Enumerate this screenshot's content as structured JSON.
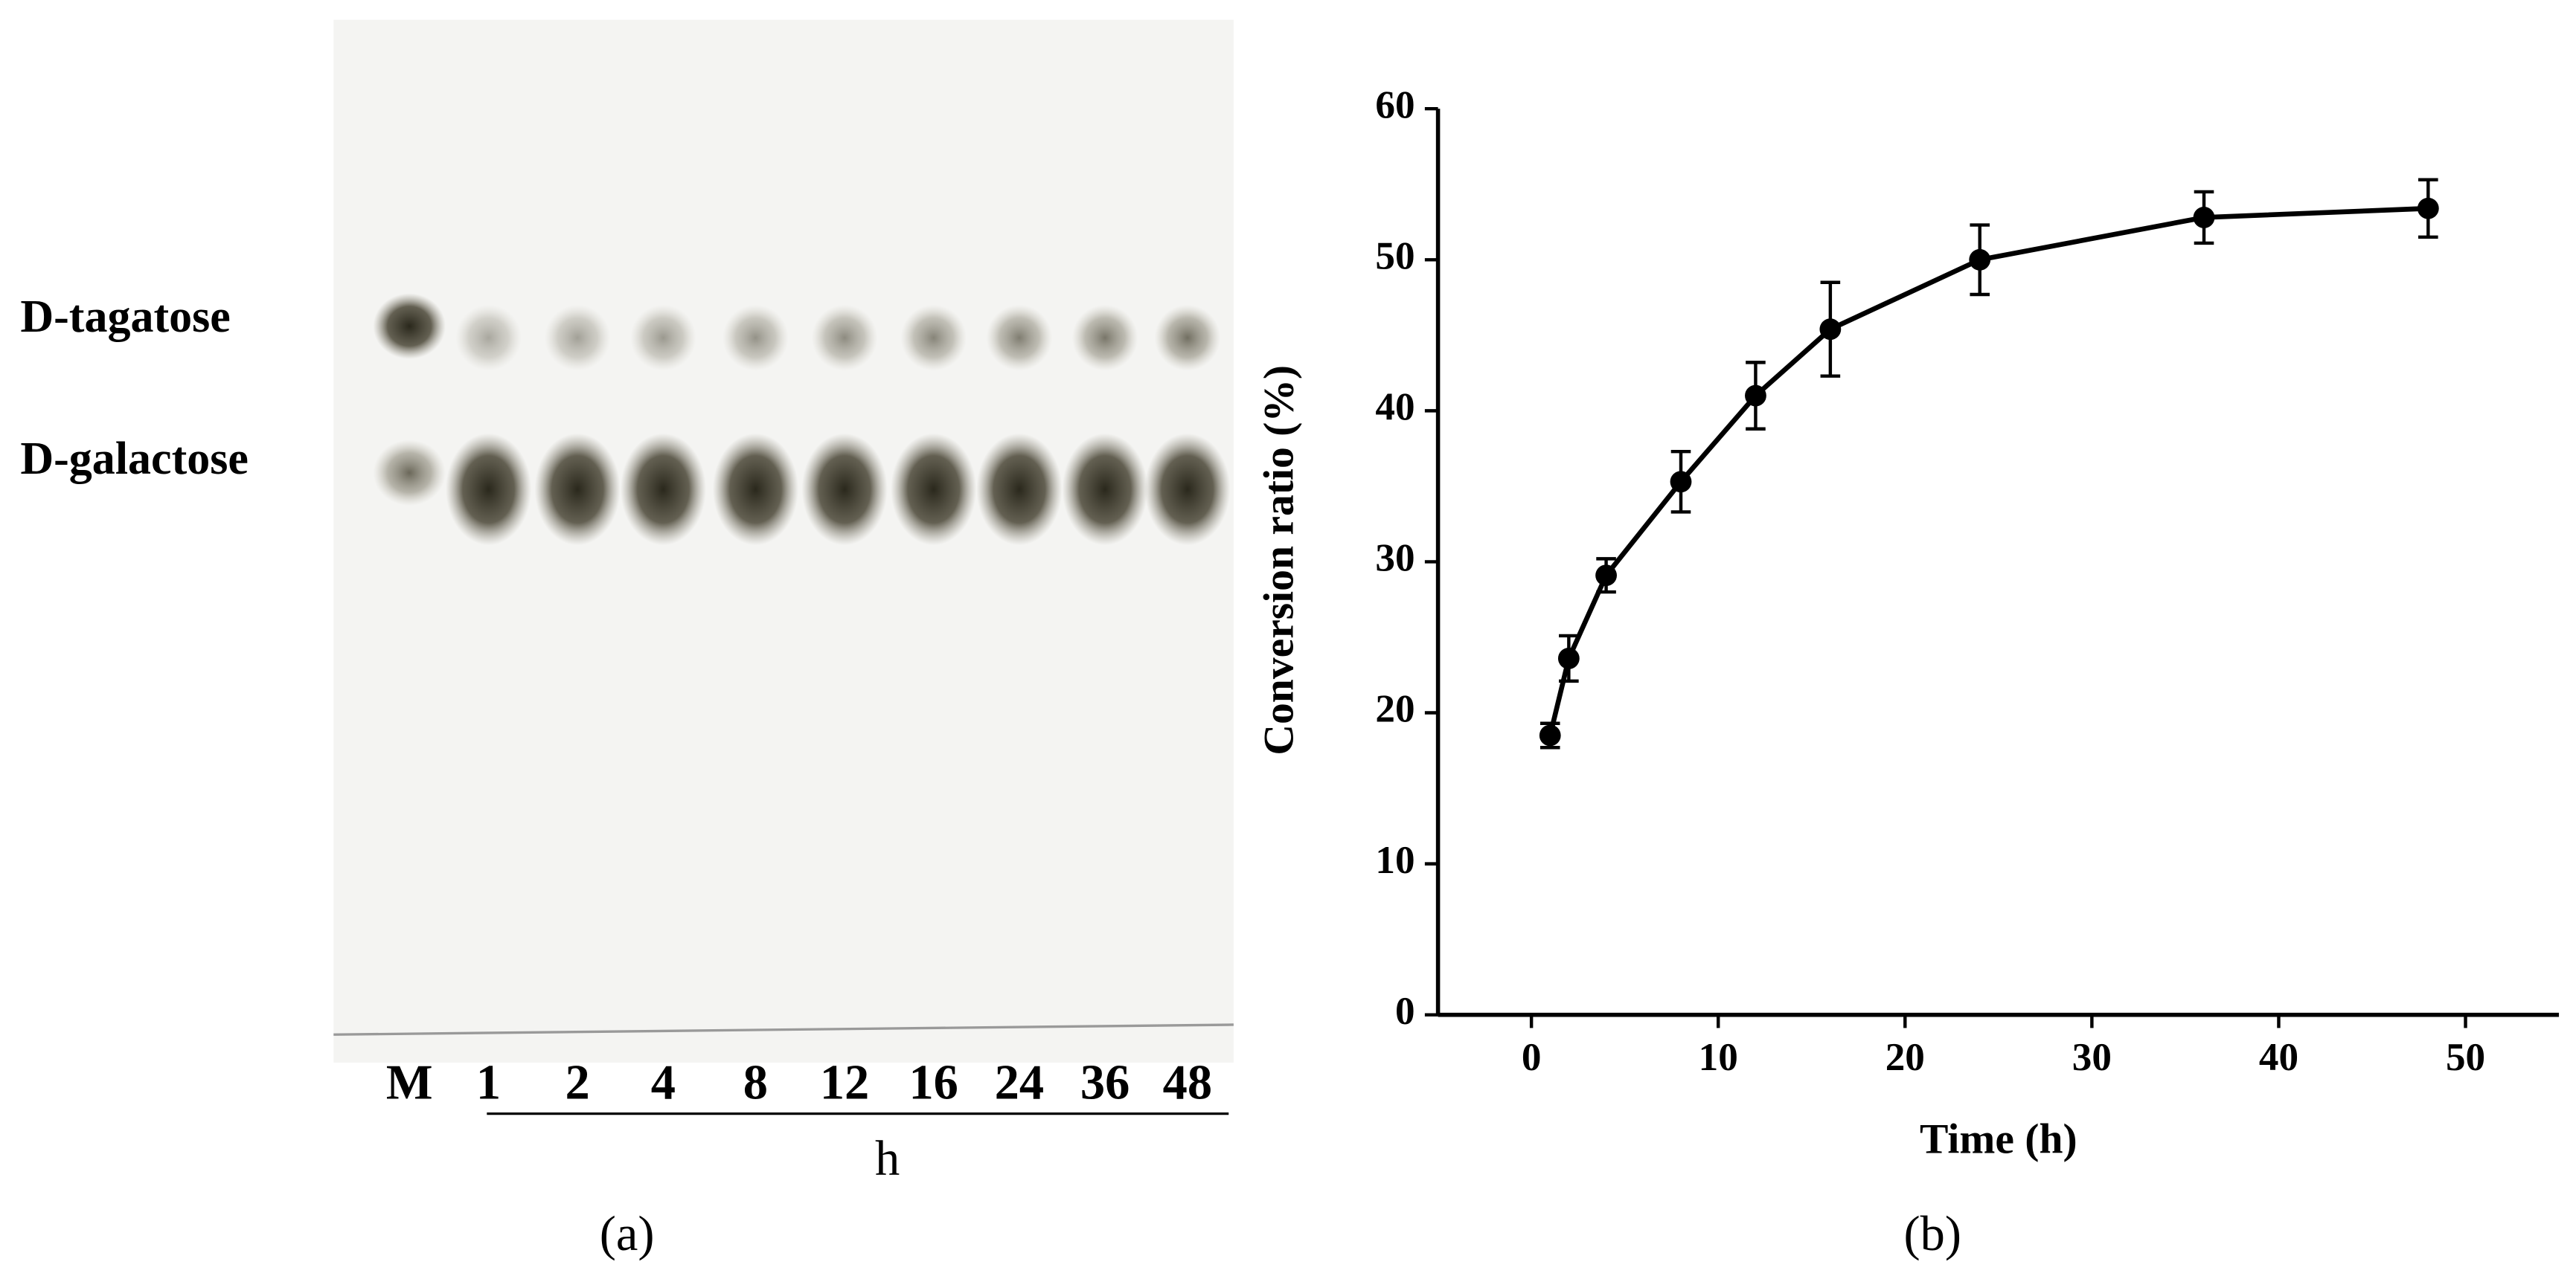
{
  "panel_a": {
    "labels": [
      "D-tagatose",
      "D-galactose"
    ],
    "lanes": [
      "M",
      "1",
      "2",
      "4",
      "8",
      "12",
      "16",
      "24",
      "36",
      "48"
    ],
    "unit": "h",
    "caption": "(a)"
  },
  "chart_data": {
    "type": "line",
    "x_label": "Time (h)",
    "y_label": "Conversion ratio (%)",
    "caption": "(b)",
    "x": [
      1,
      2,
      4,
      8,
      12,
      16,
      24,
      36,
      48
    ],
    "values": [
      18.5,
      23.6,
      29.1,
      35.3,
      41.0,
      45.4,
      50.0,
      52.8,
      53.4
    ],
    "errors": [
      0.8,
      1.5,
      1.1,
      2.0,
      2.2,
      3.1,
      2.3,
      1.7,
      1.9
    ],
    "color": "#000000",
    "xlim": [
      -5,
      55
    ],
    "xticks": [
      0,
      10,
      20,
      30,
      40,
      50
    ],
    "ylim": [
      0,
      60
    ],
    "yticks": [
      0,
      10,
      20,
      30,
      40,
      50,
      60
    ]
  }
}
